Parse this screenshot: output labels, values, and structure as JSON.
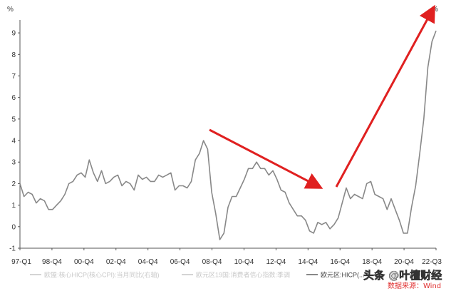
{
  "chart_data": {
    "type": "line",
    "unit_left": "%",
    "unit_right": "%",
    "x_tick_labels": [
      "97-Q1",
      "98-Q4",
      "00-Q4",
      "02-Q4",
      "04-Q4",
      "06-Q4",
      "08-Q4",
      "10-Q4",
      "12-Q4",
      "14-Q4",
      "16-Q4",
      "18-Q4",
      "20-Q4",
      "22-Q3"
    ],
    "y_tick_labels": [
      "-1",
      "0",
      "1",
      "2",
      "3",
      "4",
      "5",
      "6",
      "7",
      "8",
      "9"
    ],
    "ylim": [
      -1,
      9.6
    ],
    "grid": false,
    "series": [
      {
        "name": "欧元区:HICP(...",
        "color": "#888888",
        "points": [
          [
            1997.0,
            2.0
          ],
          [
            1997.25,
            1.4
          ],
          [
            1997.5,
            1.6
          ],
          [
            1997.75,
            1.5
          ],
          [
            1998.0,
            1.1
          ],
          [
            1998.25,
            1.3
          ],
          [
            1998.5,
            1.2
          ],
          [
            1998.75,
            0.8
          ],
          [
            1999.0,
            0.8
          ],
          [
            1999.25,
            1.0
          ],
          [
            1999.5,
            1.2
          ],
          [
            1999.75,
            1.5
          ],
          [
            2000.0,
            2.0
          ],
          [
            2000.25,
            2.1
          ],
          [
            2000.5,
            2.4
          ],
          [
            2000.75,
            2.5
          ],
          [
            2001.0,
            2.3
          ],
          [
            2001.25,
            3.1
          ],
          [
            2001.5,
            2.5
          ],
          [
            2001.75,
            2.1
          ],
          [
            2002.0,
            2.6
          ],
          [
            2002.25,
            2.0
          ],
          [
            2002.5,
            2.1
          ],
          [
            2002.75,
            2.3
          ],
          [
            2003.0,
            2.4
          ],
          [
            2003.25,
            1.9
          ],
          [
            2003.5,
            2.1
          ],
          [
            2003.75,
            2.0
          ],
          [
            2004.0,
            1.7
          ],
          [
            2004.25,
            2.4
          ],
          [
            2004.5,
            2.2
          ],
          [
            2004.75,
            2.3
          ],
          [
            2005.0,
            2.1
          ],
          [
            2005.25,
            2.1
          ],
          [
            2005.5,
            2.4
          ],
          [
            2005.75,
            2.3
          ],
          [
            2006.0,
            2.4
          ],
          [
            2006.25,
            2.5
          ],
          [
            2006.5,
            1.7
          ],
          [
            2006.75,
            1.9
          ],
          [
            2007.0,
            1.9
          ],
          [
            2007.25,
            1.8
          ],
          [
            2007.5,
            2.1
          ],
          [
            2007.75,
            3.1
          ],
          [
            2008.0,
            3.4
          ],
          [
            2008.25,
            4.0
          ],
          [
            2008.5,
            3.6
          ],
          [
            2008.75,
            1.6
          ],
          [
            2009.0,
            0.6
          ],
          [
            2009.25,
            -0.6
          ],
          [
            2009.5,
            -0.3
          ],
          [
            2009.75,
            0.9
          ],
          [
            2010.0,
            1.4
          ],
          [
            2010.25,
            1.4
          ],
          [
            2010.5,
            1.8
          ],
          [
            2010.75,
            2.2
          ],
          [
            2011.0,
            2.7
          ],
          [
            2011.25,
            2.7
          ],
          [
            2011.5,
            3.0
          ],
          [
            2011.75,
            2.7
          ],
          [
            2012.0,
            2.7
          ],
          [
            2012.25,
            2.4
          ],
          [
            2012.5,
            2.6
          ],
          [
            2012.75,
            2.2
          ],
          [
            2013.0,
            1.7
          ],
          [
            2013.25,
            1.6
          ],
          [
            2013.5,
            1.1
          ],
          [
            2013.75,
            0.8
          ],
          [
            2014.0,
            0.5
          ],
          [
            2014.25,
            0.5
          ],
          [
            2014.5,
            0.3
          ],
          [
            2014.75,
            -0.2
          ],
          [
            2015.0,
            -0.3
          ],
          [
            2015.25,
            0.2
          ],
          [
            2015.5,
            0.1
          ],
          [
            2015.75,
            0.2
          ],
          [
            2016.0,
            -0.1
          ],
          [
            2016.25,
            0.1
          ],
          [
            2016.5,
            0.4
          ],
          [
            2016.75,
            1.1
          ],
          [
            2017.0,
            1.8
          ],
          [
            2017.25,
            1.3
          ],
          [
            2017.5,
            1.5
          ],
          [
            2017.75,
            1.4
          ],
          [
            2018.0,
            1.3
          ],
          [
            2018.25,
            2.0
          ],
          [
            2018.5,
            2.1
          ],
          [
            2018.75,
            1.5
          ],
          [
            2019.0,
            1.4
          ],
          [
            2019.25,
            1.3
          ],
          [
            2019.5,
            0.8
          ],
          [
            2019.75,
            1.3
          ],
          [
            2020.0,
            0.8
          ],
          [
            2020.25,
            0.3
          ],
          [
            2020.5,
            -0.3
          ],
          [
            2020.75,
            -0.3
          ],
          [
            2021.0,
            0.9
          ],
          [
            2021.25,
            1.9
          ],
          [
            2021.5,
            3.4
          ],
          [
            2021.75,
            5.0
          ],
          [
            2022.0,
            7.4
          ],
          [
            2022.25,
            8.6
          ],
          [
            2022.5,
            9.1
          ]
        ]
      }
    ],
    "legend": [
      {
        "label": "欧盟:核心HICP(核心CPI):当月同比(右轴)",
        "color": "#d4d4d4"
      },
      {
        "label": "欧元区19国:消费者信心指数:季调",
        "color": "#d4d4d4"
      },
      {
        "label": "欧元区:HICP(...",
        "color": "#888888"
      }
    ],
    "legend_placement": "bottom",
    "annotations": [
      {
        "type": "arrow",
        "direction": "down-right",
        "color": "#e02020"
      },
      {
        "type": "arrow",
        "direction": "up-right",
        "color": "#e02020"
      }
    ]
  },
  "watermark": "头条 @叶檀财经",
  "source_note": "数据来源：Wind",
  "colors": {
    "line": "#888888",
    "axis": "#555555",
    "arrow": "#e02020",
    "legend_faint": "#d4d4d4"
  }
}
